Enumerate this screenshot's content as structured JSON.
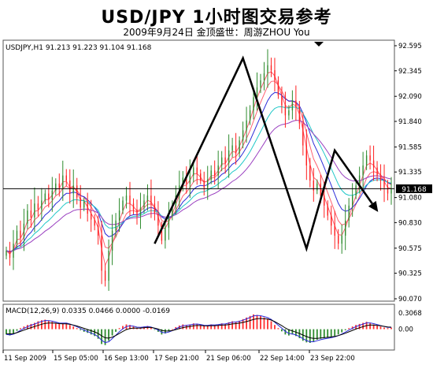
{
  "header": {
    "title": "USD/JPY 1小时图交易参考",
    "subtitle": "2009年9月24日 金顶盛世：周游ZHOU You"
  },
  "chart_data": [
    {
      "type": "candlestick",
      "info_line": "USDJPY,H1  91.213 91.223 91.104 91.168",
      "current_price_label": "91.168",
      "current_price": 91.168,
      "ylim": [
        90.07,
        92.595
      ],
      "y_ticks": [
        "92.595",
        "92.345",
        "92.090",
        "91.840",
        "91.585",
        "91.335",
        "91.080",
        "90.830",
        "90.575",
        "90.325",
        "90.070"
      ],
      "x_ticks": [
        "11 Sep 2009",
        "15 Sep 05:00",
        "16 Sep 13:00",
        "17 Sep 21:00",
        "21 Sep 06:00",
        "22 Sep 14:00",
        "23 Sep 22:00"
      ],
      "grid": false,
      "colors": {
        "bull": "#2e8b2e",
        "bear": "#ff2020",
        "ma_fast": "#ff6070",
        "ma_mid": "#2a2ad8",
        "ma_slow": "#20c8c8",
        "ma_long": "#9a40c0",
        "trend": "#000000"
      },
      "closes": [
        90.55,
        90.48,
        90.62,
        90.75,
        90.68,
        90.82,
        90.95,
        90.88,
        91.02,
        90.96,
        91.05,
        91.12,
        91.06,
        91.15,
        91.22,
        91.18,
        91.3,
        91.25,
        91.12,
        91.2,
        91.08,
        90.98,
        91.04,
        90.92,
        90.86,
        90.8,
        90.7,
        90.35,
        90.25,
        90.55,
        90.75,
        90.85,
        90.95,
        91.05,
        91.1,
        91.02,
        90.96,
        90.9,
        90.98,
        91.05,
        91.1,
        91.02,
        90.92,
        90.8,
        90.65,
        90.78,
        90.9,
        91.0,
        91.1,
        91.2,
        91.28,
        91.22,
        91.3,
        91.38,
        91.32,
        91.25,
        91.18,
        91.26,
        91.35,
        91.3,
        91.4,
        91.48,
        91.42,
        91.55,
        91.6,
        91.52,
        91.65,
        91.75,
        91.85,
        91.95,
        92.08,
        92.18,
        92.25,
        92.32,
        92.4,
        92.35,
        92.25,
        92.1,
        92.0,
        91.9,
        91.95,
        92.05,
        91.98,
        91.82,
        91.6,
        91.4,
        91.25,
        91.15,
        91.22,
        91.1,
        91.0,
        90.9,
        90.8,
        90.7,
        90.62,
        90.7,
        90.85,
        91.0,
        91.1,
        91.2,
        91.3,
        91.4,
        91.5,
        91.45,
        91.38,
        91.3,
        91.25,
        91.18,
        91.12,
        91.16
      ],
      "trend_line_points": [
        {
          "bar": 42,
          "price": 90.62
        },
        {
          "bar": 67,
          "price": 92.47
        },
        {
          "bar": 85,
          "price": 90.57
        },
        {
          "bar": 93,
          "price": 91.55
        },
        {
          "bar": 104,
          "price": 91.0
        }
      ],
      "indicator": {
        "info_line": "MACD(12,26,9) 0.0335 0.0466 0.0000 -0.0169",
        "y_ticks": [
          "0.3068",
          "0.00"
        ],
        "ylim": [
          -0.35,
          0.3068
        ],
        "histogram": [
          -0.1,
          -0.12,
          -0.08,
          -0.03,
          0.02,
          0.05,
          0.08,
          0.1,
          0.12,
          0.15,
          0.17,
          0.18,
          0.16,
          0.14,
          0.12,
          0.1,
          0.11,
          0.12,
          0.08,
          0.05,
          0.02,
          -0.02,
          -0.05,
          -0.07,
          -0.1,
          -0.13,
          -0.18,
          -0.28,
          -0.3,
          -0.22,
          -0.12,
          -0.05,
          0.02,
          0.06,
          0.09,
          0.08,
          0.05,
          0.02,
          0.03,
          0.05,
          0.06,
          0.03,
          -0.01,
          -0.05,
          -0.1,
          -0.08,
          -0.04,
          0.0,
          0.04,
          0.07,
          0.09,
          0.08,
          0.09,
          0.11,
          0.1,
          0.08,
          0.06,
          0.07,
          0.09,
          0.08,
          0.09,
          0.11,
          0.1,
          0.13,
          0.15,
          0.14,
          0.16,
          0.19,
          0.22,
          0.25,
          0.28,
          0.27,
          0.25,
          0.22,
          0.2,
          0.15,
          0.08,
          0.02,
          -0.04,
          -0.1,
          -0.12,
          -0.1,
          -0.13,
          -0.17,
          -0.22,
          -0.25,
          -0.26,
          -0.24,
          -0.2,
          -0.18,
          -0.17,
          -0.16,
          -0.15,
          -0.13,
          -0.1,
          -0.06,
          -0.02,
          0.02,
          0.05,
          0.08,
          0.1,
          0.12,
          0.14,
          0.12,
          0.09,
          0.07,
          0.05,
          0.03,
          0.02,
          0.03
        ]
      }
    }
  ]
}
